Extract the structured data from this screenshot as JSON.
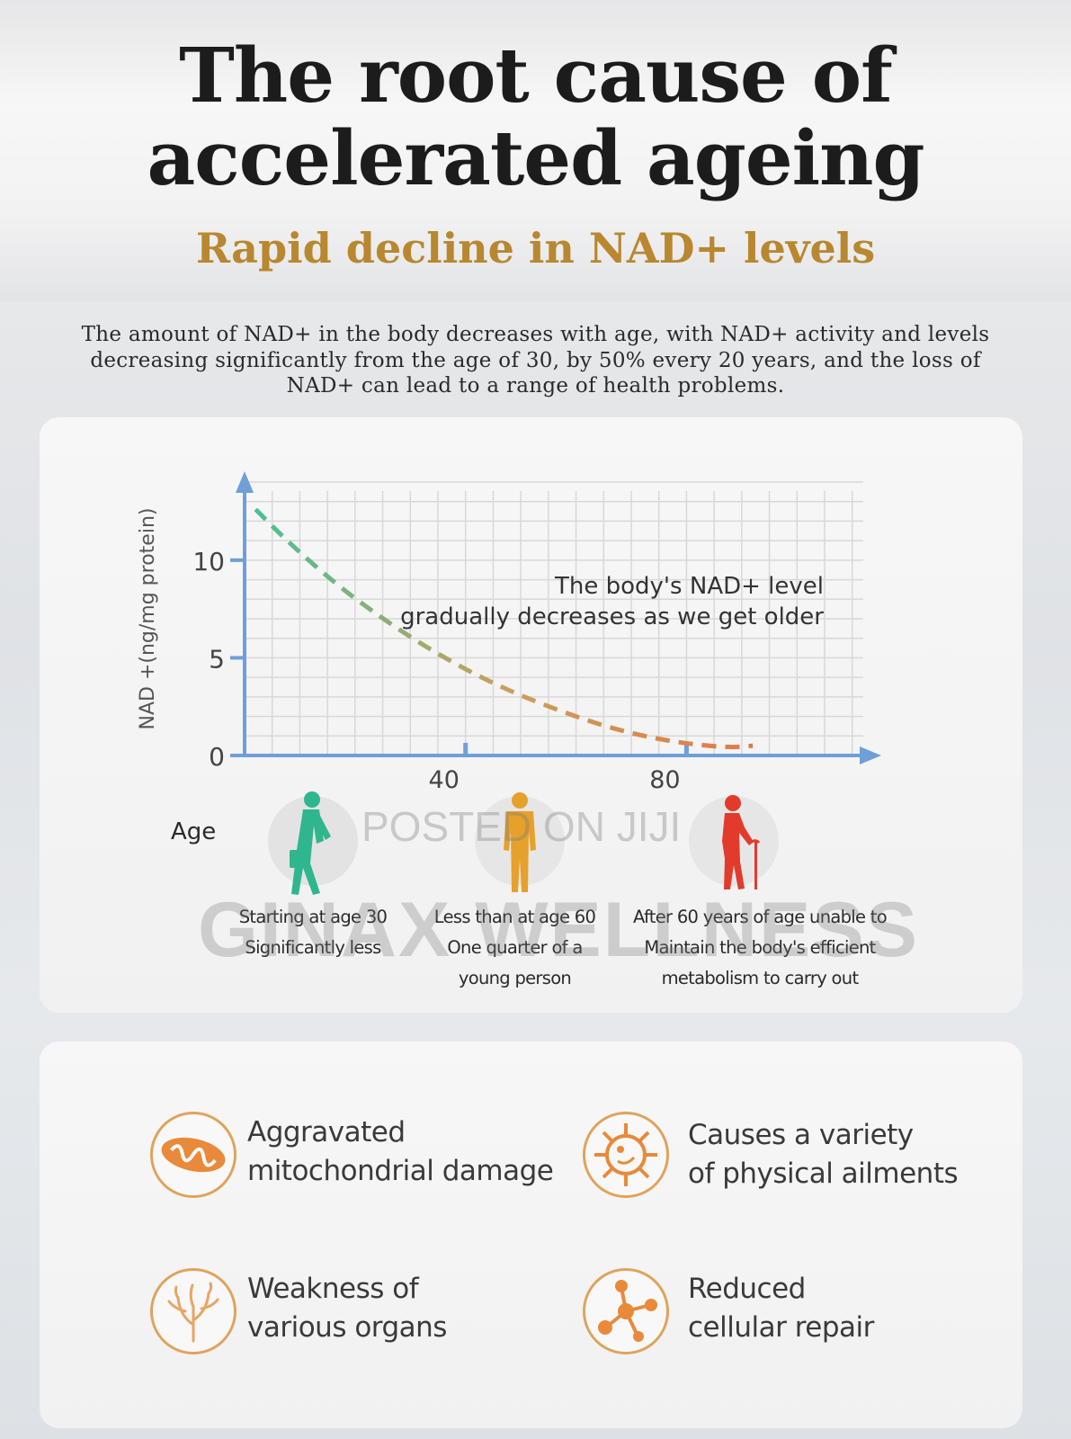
{
  "header": {
    "title_line1": "The root cause of",
    "title_line2": "accelerated ageing",
    "subtitle": "Rapid decline in NAD+ levels"
  },
  "intro": {
    "line1": "The amount of NAD+ in the body decreases with age, with NAD+ activity and levels",
    "line2": "decreasing significantly from the age of 30, by 50% every 20 years, and the loss of",
    "line3": "NAD+ can lead to a range of health problems."
  },
  "chart_data": {
    "type": "line",
    "ylabel": "NAD +(ng/mg protein)",
    "xlabel": "",
    "y_ticks": [
      0,
      5,
      10
    ],
    "x_ticks": [
      40,
      80
    ],
    "ylim": [
      0,
      14
    ],
    "xlim": [
      0,
      112
    ],
    "grid": true,
    "legend": "none",
    "annotation_line1": "The body's NAD+ level",
    "annotation_line2": "gradually decreases as we get older",
    "series": [
      {
        "style": "dashed",
        "x": [
          2,
          8,
          16,
          24,
          32,
          40,
          48,
          56,
          64,
          72,
          80,
          88,
          92
        ],
        "y": [
          12.6,
          10.9,
          8.9,
          7.2,
          5.7,
          4.4,
          3.3,
          2.4,
          1.6,
          1.0,
          0.6,
          0.4,
          0.5
        ]
      }
    ],
    "colors": {
      "curve_start": "#4bbf93",
      "curve_mid": "#c9a05a",
      "curve_end": "#e07a4a",
      "axis": "#6f9fd8",
      "grid": "#d8d8d8"
    }
  },
  "age_section": {
    "label": "Age",
    "figures": [
      {
        "icon": "young-person-icon",
        "color": "#2fb68e",
        "line1": "Starting at age 30",
        "line2": "Significantly less",
        "line3": ""
      },
      {
        "icon": "middle-aged-person-icon",
        "color": "#e5a12c",
        "line1": "Less than at age 60",
        "line2": "One quarter of a",
        "line3": "young person"
      },
      {
        "icon": "elderly-person-with-cane-icon",
        "color": "#e23b2b",
        "line1": "After 60 years of age unable to",
        "line2": "Maintain the body's efficient",
        "line3": "metabolism to carry out"
      }
    ]
  },
  "watermark": {
    "line1": "POSTED ON JIJI",
    "line2": "GINAX WELLNESS"
  },
  "effects": [
    {
      "icon": "mitochondria-icon",
      "line1": "Aggravated",
      "line2": "mitochondrial damage"
    },
    {
      "icon": "virus-icon",
      "line1": "Causes a variety",
      "line2": "of physical ailments"
    },
    {
      "icon": "organ-tissue-icon",
      "line1": "Weakness of",
      "line2": "various organs"
    },
    {
      "icon": "molecule-icon",
      "line1": "Reduced",
      "line2": "cellular repair"
    }
  ],
  "accent_color": "#e0a35b"
}
